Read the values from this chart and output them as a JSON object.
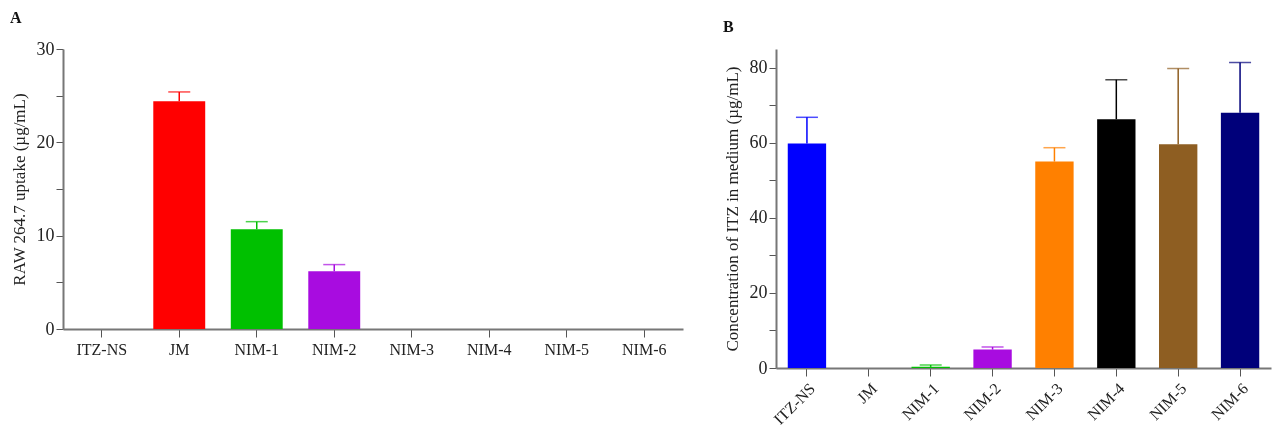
{
  "chart_data": [
    {
      "type": "bar",
      "title": "A",
      "ylabel": "RAW 264.7 uptake (µg/mL)",
      "categories": [
        "ITZ-NS",
        "JM",
        "NIM-1",
        "NIM-2",
        "NIM-3",
        "NIM-4",
        "NIM-5",
        "NIM-6"
      ],
      "values": [
        0,
        24.4,
        10.7,
        6.2,
        0,
        0,
        0,
        0
      ],
      "colors": [
        "#0000ff",
        "#ff0000",
        "#00c000",
        "#a80ce0",
        "#ff8000",
        "#000000",
        "#8e5e22",
        "#00007a"
      ],
      "errors": [
        null,
        [
          24.4,
          25.4
        ],
        [
          10.7,
          11.5
        ],
        [
          6.2,
          6.9
        ],
        null,
        null,
        null,
        null
      ],
      "ylim": [
        0,
        30
      ],
      "yticks": [
        0,
        {
          "value": 5,
          "label": null
        },
        10,
        {
          "value": 15,
          "label": null
        },
        20,
        {
          "value": 25,
          "label": null
        },
        30
      ]
    },
    {
      "type": "bar",
      "title": "B",
      "ylabel": "Concentration of ITZ in medium (µg/mL)",
      "categories": [
        "ITZ-NS",
        "JM",
        "NIM-1",
        "NIM-2",
        "NIM-3",
        "NIM-4",
        "NIM-5",
        "NIM-6"
      ],
      "values": [
        59.8,
        0,
        0.3,
        4.9,
        55,
        66.3,
        59.6,
        68
      ],
      "colors": [
        "#0000ff",
        "#ff0000",
        "#00c000",
        "#a80ce0",
        "#ff8000",
        "#000000",
        "#8e5e22",
        "#00007a"
      ],
      "errors": [
        [
          59.8,
          66.8
        ],
        null,
        [
          0.3,
          0.8
        ],
        [
          4.9,
          5.6
        ],
        [
          55,
          58.7
        ],
        [
          66.3,
          76.8
        ],
        [
          59.6,
          79.8
        ],
        [
          68,
          81.4
        ]
      ],
      "ylim": [
        0,
        85
      ],
      "yticks": [
        0,
        {
          "value": 10,
          "label": null
        },
        20,
        {
          "value": 30,
          "label": null
        },
        40,
        {
          "value": 50,
          "label": null
        },
        60,
        {
          "value": 70,
          "label": null
        },
        80
      ]
    }
  ]
}
